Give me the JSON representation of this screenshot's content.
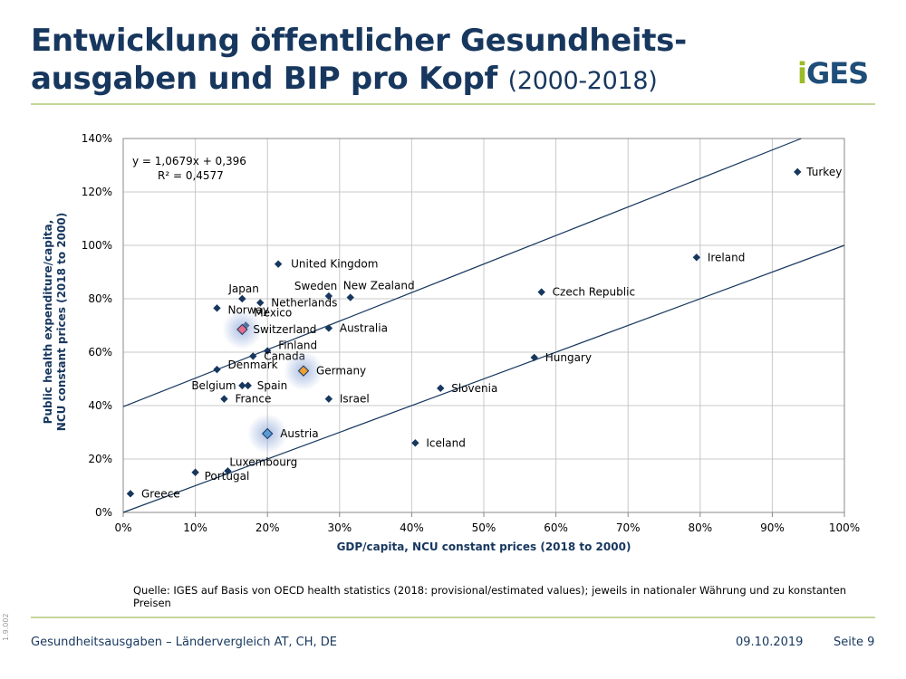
{
  "header": {
    "title_line1": "Entwicklung öffentlicher Gesundheits-",
    "title_line2": "ausgaben und BIP pro Kopf",
    "title_years": "(2000-2018)",
    "logo_text": "IGES"
  },
  "chart_data": {
    "type": "scatter",
    "xlabel": "GDP/capita, NCU constant prices (2018 to 2000)",
    "ylabel_line1": "Public health expenditure/capita,",
    "ylabel_line2": "NCU constant prices (2018  to 2000)",
    "xlim": [
      0,
      100
    ],
    "ylim": [
      0,
      140
    ],
    "x_ticks": [
      "0%",
      "10%",
      "20%",
      "30%",
      "40%",
      "50%",
      "60%",
      "70%",
      "80%",
      "90%",
      "100%"
    ],
    "y_ticks": [
      "0%",
      "20%",
      "40%",
      "60%",
      "80%",
      "100%",
      "120%",
      "140%"
    ],
    "grid": true,
    "equation": "y = 1,0679x + 0,396",
    "r_squared": "R² = 0,4577",
    "trend_lines": [
      {
        "slope": 1.0679,
        "intercept": 39.6
      },
      {
        "slope": 1.0,
        "intercept": 0
      }
    ],
    "points": [
      {
        "label": "Turkey",
        "x": 93.5,
        "y": 127.5,
        "highlight": false
      },
      {
        "label": "Ireland",
        "x": 79.5,
        "y": 95.5,
        "highlight": false
      },
      {
        "label": "Czech Republic",
        "x": 58,
        "y": 82.5,
        "highlight": false
      },
      {
        "label": "Hungary",
        "x": 57,
        "y": 58,
        "highlight": false
      },
      {
        "label": "Slovenia",
        "x": 44,
        "y": 46.5,
        "highlight": false
      },
      {
        "label": "Iceland",
        "x": 40.5,
        "y": 26,
        "highlight": false
      },
      {
        "label": "United Kingdom",
        "x": 21.5,
        "y": 93,
        "highlight": false
      },
      {
        "label": "New Zealand",
        "x": 31.5,
        "y": 80.5,
        "highlight": false
      },
      {
        "label": "Sweden",
        "x": 28.5,
        "y": 81,
        "highlight": false
      },
      {
        "label": "Japan",
        "x": 16.5,
        "y": 80,
        "highlight": false
      },
      {
        "label": "Netherlands",
        "x": 19,
        "y": 78.5,
        "highlight": false
      },
      {
        "label": "Norway",
        "x": 13,
        "y": 76.5,
        "highlight": false
      },
      {
        "label": "Mexico",
        "x": 17,
        "y": 70,
        "highlight": false
      },
      {
        "label": "Switzerland",
        "x": 16.5,
        "y": 68.5,
        "highlight": true,
        "color": "#e46c8c"
      },
      {
        "label": "Australia",
        "x": 28.5,
        "y": 69,
        "highlight": false
      },
      {
        "label": "Finland",
        "x": 20,
        "y": 60.5,
        "highlight": false
      },
      {
        "label": "Canada",
        "x": 18,
        "y": 58.5,
        "highlight": false
      },
      {
        "label": "Denmark",
        "x": 13,
        "y": 53.5,
        "highlight": false
      },
      {
        "label": "Germany",
        "x": 25,
        "y": 53,
        "highlight": true,
        "color": "#f0a030"
      },
      {
        "label": "Belgium",
        "x": 16.5,
        "y": 47.5,
        "highlight": false
      },
      {
        "label": "Spain",
        "x": 17.3,
        "y": 47.5,
        "highlight": false
      },
      {
        "label": "France",
        "x": 14,
        "y": 42.5,
        "highlight": false
      },
      {
        "label": "Israel",
        "x": 28.5,
        "y": 42.5,
        "highlight": false
      },
      {
        "label": "Austria",
        "x": 20,
        "y": 29.5,
        "highlight": true,
        "color": "#5b9bd5"
      },
      {
        "label": "Luxembourg",
        "x": 14.5,
        "y": 15.5,
        "highlight": false
      },
      {
        "label": "Portugal",
        "x": 10,
        "y": 15,
        "highlight": false
      },
      {
        "label": "Greece",
        "x": 1,
        "y": 7,
        "highlight": false
      }
    ],
    "colors": {
      "marker": "#17375e",
      "grid": "#c8c8c8",
      "axis_text": "#17375e"
    }
  },
  "source_text": "Quelle: IGES auf Basis von OECD health statistics (2018: provisional/estimated values); jeweils in nationaler Währung und zu konstanten Preisen",
  "footer": {
    "left": "Gesundheitsausgaben – Ländervergleich AT, CH, DE",
    "date": "09.10.2019",
    "page": "Seite 9",
    "side_code": "1.9.002"
  }
}
